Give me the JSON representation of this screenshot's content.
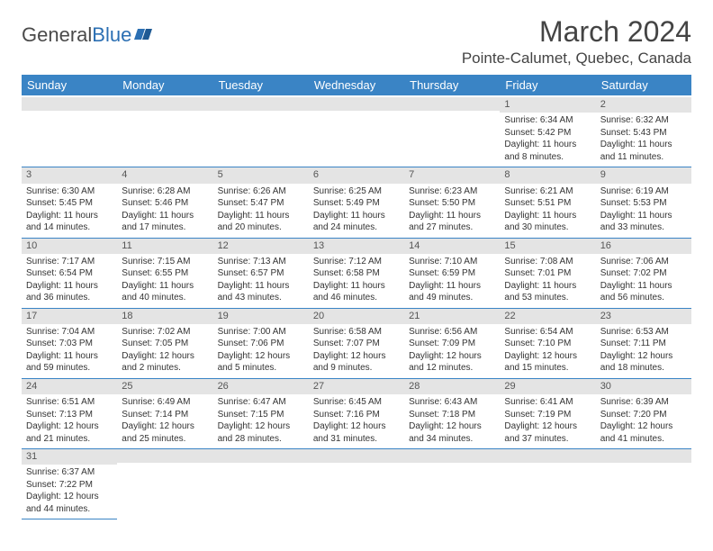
{
  "brand": {
    "first": "General",
    "second": "Blue"
  },
  "title": "March 2024",
  "location": "Pointe-Calumet, Quebec, Canada",
  "colors": {
    "header_bg": "#3a84c5",
    "header_text": "#ffffff",
    "daynum_bg": "#e4e4e4",
    "border": "#3a84c5",
    "brand_accent": "#2b6fb3"
  },
  "day_headers": [
    "Sunday",
    "Monday",
    "Tuesday",
    "Wednesday",
    "Thursday",
    "Friday",
    "Saturday"
  ],
  "weeks": [
    [
      {
        "n": "",
        "lines": [
          "",
          "",
          ""
        ]
      },
      {
        "n": "",
        "lines": [
          "",
          "",
          ""
        ]
      },
      {
        "n": "",
        "lines": [
          "",
          "",
          ""
        ]
      },
      {
        "n": "",
        "lines": [
          "",
          "",
          ""
        ]
      },
      {
        "n": "",
        "lines": [
          "",
          "",
          ""
        ]
      },
      {
        "n": "1",
        "lines": [
          "Sunrise: 6:34 AM",
          "Sunset: 5:42 PM",
          "Daylight: 11 hours and 8 minutes."
        ]
      },
      {
        "n": "2",
        "lines": [
          "Sunrise: 6:32 AM",
          "Sunset: 5:43 PM",
          "Daylight: 11 hours and 11 minutes."
        ]
      }
    ],
    [
      {
        "n": "3",
        "lines": [
          "Sunrise: 6:30 AM",
          "Sunset: 5:45 PM",
          "Daylight: 11 hours and 14 minutes."
        ]
      },
      {
        "n": "4",
        "lines": [
          "Sunrise: 6:28 AM",
          "Sunset: 5:46 PM",
          "Daylight: 11 hours and 17 minutes."
        ]
      },
      {
        "n": "5",
        "lines": [
          "Sunrise: 6:26 AM",
          "Sunset: 5:47 PM",
          "Daylight: 11 hours and 20 minutes."
        ]
      },
      {
        "n": "6",
        "lines": [
          "Sunrise: 6:25 AM",
          "Sunset: 5:49 PM",
          "Daylight: 11 hours and 24 minutes."
        ]
      },
      {
        "n": "7",
        "lines": [
          "Sunrise: 6:23 AM",
          "Sunset: 5:50 PM",
          "Daylight: 11 hours and 27 minutes."
        ]
      },
      {
        "n": "8",
        "lines": [
          "Sunrise: 6:21 AM",
          "Sunset: 5:51 PM",
          "Daylight: 11 hours and 30 minutes."
        ]
      },
      {
        "n": "9",
        "lines": [
          "Sunrise: 6:19 AM",
          "Sunset: 5:53 PM",
          "Daylight: 11 hours and 33 minutes."
        ]
      }
    ],
    [
      {
        "n": "10",
        "lines": [
          "Sunrise: 7:17 AM",
          "Sunset: 6:54 PM",
          "Daylight: 11 hours and 36 minutes."
        ]
      },
      {
        "n": "11",
        "lines": [
          "Sunrise: 7:15 AM",
          "Sunset: 6:55 PM",
          "Daylight: 11 hours and 40 minutes."
        ]
      },
      {
        "n": "12",
        "lines": [
          "Sunrise: 7:13 AM",
          "Sunset: 6:57 PM",
          "Daylight: 11 hours and 43 minutes."
        ]
      },
      {
        "n": "13",
        "lines": [
          "Sunrise: 7:12 AM",
          "Sunset: 6:58 PM",
          "Daylight: 11 hours and 46 minutes."
        ]
      },
      {
        "n": "14",
        "lines": [
          "Sunrise: 7:10 AM",
          "Sunset: 6:59 PM",
          "Daylight: 11 hours and 49 minutes."
        ]
      },
      {
        "n": "15",
        "lines": [
          "Sunrise: 7:08 AM",
          "Sunset: 7:01 PM",
          "Daylight: 11 hours and 53 minutes."
        ]
      },
      {
        "n": "16",
        "lines": [
          "Sunrise: 7:06 AM",
          "Sunset: 7:02 PM",
          "Daylight: 11 hours and 56 minutes."
        ]
      }
    ],
    [
      {
        "n": "17",
        "lines": [
          "Sunrise: 7:04 AM",
          "Sunset: 7:03 PM",
          "Daylight: 11 hours and 59 minutes."
        ]
      },
      {
        "n": "18",
        "lines": [
          "Sunrise: 7:02 AM",
          "Sunset: 7:05 PM",
          "Daylight: 12 hours and 2 minutes."
        ]
      },
      {
        "n": "19",
        "lines": [
          "Sunrise: 7:00 AM",
          "Sunset: 7:06 PM",
          "Daylight: 12 hours and 5 minutes."
        ]
      },
      {
        "n": "20",
        "lines": [
          "Sunrise: 6:58 AM",
          "Sunset: 7:07 PM",
          "Daylight: 12 hours and 9 minutes."
        ]
      },
      {
        "n": "21",
        "lines": [
          "Sunrise: 6:56 AM",
          "Sunset: 7:09 PM",
          "Daylight: 12 hours and 12 minutes."
        ]
      },
      {
        "n": "22",
        "lines": [
          "Sunrise: 6:54 AM",
          "Sunset: 7:10 PM",
          "Daylight: 12 hours and 15 minutes."
        ]
      },
      {
        "n": "23",
        "lines": [
          "Sunrise: 6:53 AM",
          "Sunset: 7:11 PM",
          "Daylight: 12 hours and 18 minutes."
        ]
      }
    ],
    [
      {
        "n": "24",
        "lines": [
          "Sunrise: 6:51 AM",
          "Sunset: 7:13 PM",
          "Daylight: 12 hours and 21 minutes."
        ]
      },
      {
        "n": "25",
        "lines": [
          "Sunrise: 6:49 AM",
          "Sunset: 7:14 PM",
          "Daylight: 12 hours and 25 minutes."
        ]
      },
      {
        "n": "26",
        "lines": [
          "Sunrise: 6:47 AM",
          "Sunset: 7:15 PM",
          "Daylight: 12 hours and 28 minutes."
        ]
      },
      {
        "n": "27",
        "lines": [
          "Sunrise: 6:45 AM",
          "Sunset: 7:16 PM",
          "Daylight: 12 hours and 31 minutes."
        ]
      },
      {
        "n": "28",
        "lines": [
          "Sunrise: 6:43 AM",
          "Sunset: 7:18 PM",
          "Daylight: 12 hours and 34 minutes."
        ]
      },
      {
        "n": "29",
        "lines": [
          "Sunrise: 6:41 AM",
          "Sunset: 7:19 PM",
          "Daylight: 12 hours and 37 minutes."
        ]
      },
      {
        "n": "30",
        "lines": [
          "Sunrise: 6:39 AM",
          "Sunset: 7:20 PM",
          "Daylight: 12 hours and 41 minutes."
        ]
      }
    ],
    [
      {
        "n": "31",
        "lines": [
          "Sunrise: 6:37 AM",
          "Sunset: 7:22 PM",
          "Daylight: 12 hours and 44 minutes."
        ]
      },
      {
        "n": "",
        "lines": [
          "",
          "",
          ""
        ]
      },
      {
        "n": "",
        "lines": [
          "",
          "",
          ""
        ]
      },
      {
        "n": "",
        "lines": [
          "",
          "",
          ""
        ]
      },
      {
        "n": "",
        "lines": [
          "",
          "",
          ""
        ]
      },
      {
        "n": "",
        "lines": [
          "",
          "",
          ""
        ]
      },
      {
        "n": "",
        "lines": [
          "",
          "",
          ""
        ]
      }
    ]
  ]
}
